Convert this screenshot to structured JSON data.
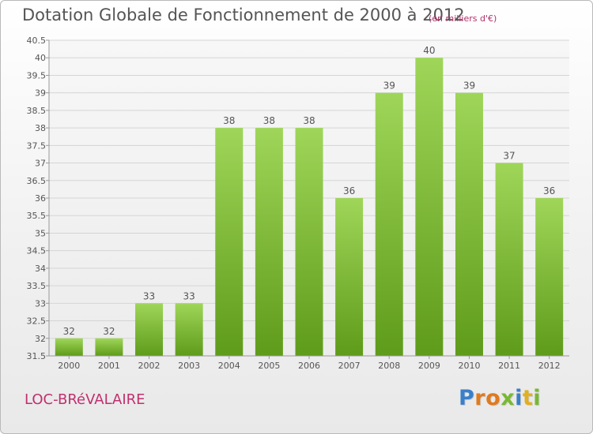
{
  "header": {
    "title": "Dotation Globale de Fonctionnement de 2000 à 2012",
    "unit": "(en milliers d'€)"
  },
  "footer": {
    "commune": "LOC-BRéVALAIRE"
  },
  "logo": {
    "letters": [
      "P",
      "r",
      "o",
      "x",
      "i",
      "t",
      "i"
    ],
    "colors": [
      "#3a7fc9",
      "#e07a1f",
      "#e07a1f",
      "#79b833",
      "#3a7fc9",
      "#e0b020",
      "#79b833"
    ]
  },
  "colors": {
    "bar_light": "#9fd659",
    "bar_dark": "#5f9b1a",
    "axis": "#999999",
    "grid": "#d5d5d5"
  },
  "chart_data": {
    "type": "bar",
    "title": "Dotation Globale de Fonctionnement de 2000 à 2012",
    "subtitle": "(en milliers d'€)",
    "xlabel": "",
    "ylabel": "",
    "ylim": [
      31.5,
      40.5
    ],
    "yticks": [
      "31.5",
      "32",
      "32.5",
      "33",
      "33.5",
      "34",
      "34.5",
      "35",
      "35.5",
      "36",
      "36.5",
      "37",
      "37.5",
      "38",
      "38.5",
      "39",
      "39.5",
      "40",
      "40.5"
    ],
    "grid": true,
    "categories": [
      "2000",
      "2001",
      "2002",
      "2003",
      "2004",
      "2005",
      "2006",
      "2007",
      "2008",
      "2009",
      "2010",
      "2011",
      "2012"
    ],
    "values": [
      32,
      32,
      33,
      33,
      38,
      38,
      38,
      36,
      39,
      40,
      39,
      37,
      36
    ],
    "labels": [
      "32",
      "32",
      "33",
      "33",
      "38",
      "38",
      "38",
      "36",
      "39",
      "40",
      "39",
      "37",
      "36"
    ]
  }
}
